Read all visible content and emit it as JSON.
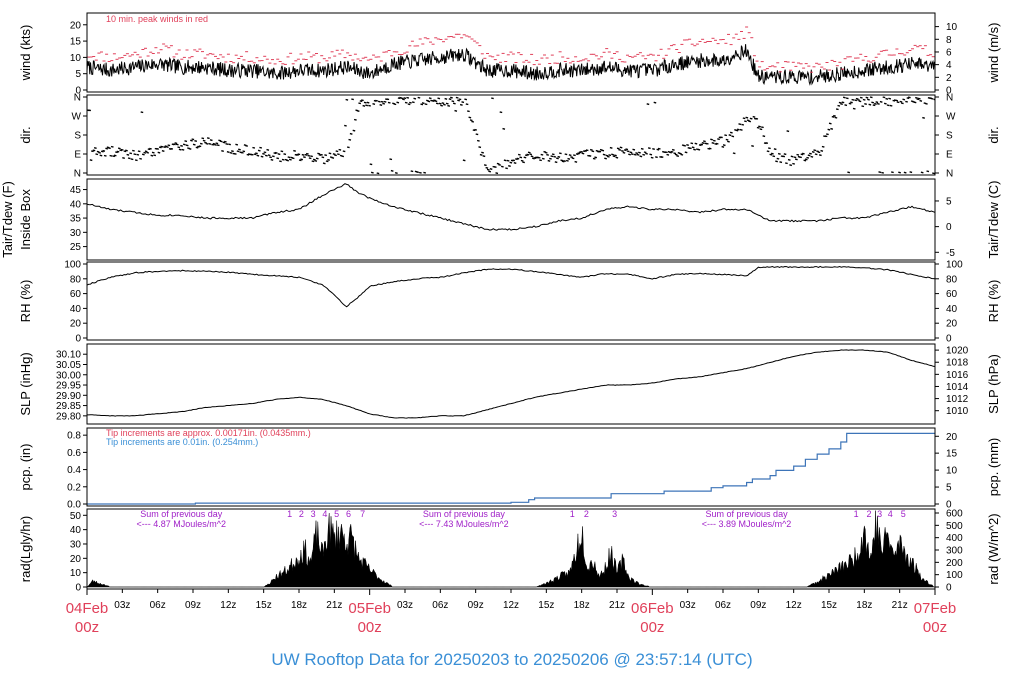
{
  "footer": {
    "title": "UW Rooftop Data for 20250203  to  20250206 @ 23:57:14  (UTC)"
  },
  "time_axis": {
    "range_hours": [
      0,
      72
    ],
    "major": [
      {
        "hour": 0,
        "day": "04Feb",
        "time": "00z"
      },
      {
        "hour": 24,
        "day": "05Feb",
        "time": "00z"
      },
      {
        "hour": 48,
        "day": "06Feb",
        "time": "00z"
      },
      {
        "hour": 72,
        "day": "07Feb",
        "time": "00z"
      }
    ],
    "minor": [
      {
        "hour": 3,
        "label": "03z"
      },
      {
        "hour": 6,
        "label": "06z"
      },
      {
        "hour": 9,
        "label": "09z"
      },
      {
        "hour": 12,
        "label": "12z"
      },
      {
        "hour": 15,
        "label": "15z"
      },
      {
        "hour": 18,
        "label": "18z"
      },
      {
        "hour": 21,
        "label": "21z"
      },
      {
        "hour": 27,
        "label": "03z"
      },
      {
        "hour": 30,
        "label": "06z"
      },
      {
        "hour": 33,
        "label": "09z"
      },
      {
        "hour": 36,
        "label": "12z"
      },
      {
        "hour": 39,
        "label": "15z"
      },
      {
        "hour": 42,
        "label": "18z"
      },
      {
        "hour": 45,
        "label": "21z"
      },
      {
        "hour": 51,
        "label": "03z"
      },
      {
        "hour": 54,
        "label": "06z"
      },
      {
        "hour": 57,
        "label": "09z"
      },
      {
        "hour": 60,
        "label": "12z"
      },
      {
        "hour": 63,
        "label": "15z"
      },
      {
        "hour": 66,
        "label": "18z"
      },
      {
        "hour": 69,
        "label": "21z"
      }
    ]
  },
  "chart_data": [
    {
      "type": "line",
      "id": "wind",
      "ylabel_left": "wind (kts)",
      "ylabel_right": "wind (m/s)",
      "ylim": [
        0,
        23
      ],
      "yticks_left": [
        0,
        5,
        10,
        15,
        20
      ],
      "yticks_right": [
        {
          "value": 0,
          "label": "0"
        },
        {
          "value": 3.89,
          "label": "2"
        },
        {
          "value": 7.78,
          "label": "4"
        },
        {
          "value": 11.66,
          "label": "6"
        },
        {
          "value": 15.55,
          "label": "8"
        },
        {
          "value": 19.44,
          "label": "10"
        }
      ],
      "annotation": {
        "text": "10 min. peak winds in red",
        "color": "#e0405a"
      },
      "series": [
        {
          "name": "wind",
          "x": [
            0,
            2,
            4,
            6,
            8,
            10,
            12,
            14,
            16,
            18,
            20,
            22,
            24,
            26,
            28,
            30,
            32,
            34,
            36,
            38,
            40,
            42,
            44,
            46,
            48,
            50,
            52,
            54,
            55,
            56,
            57,
            58,
            60,
            62,
            64,
            66,
            68,
            70,
            72
          ],
          "y": [
            7,
            6,
            7,
            8,
            7,
            7,
            6,
            6,
            5,
            6,
            6,
            7,
            5,
            8,
            9,
            10,
            11,
            6,
            6,
            5,
            6,
            6,
            7,
            6,
            6,
            8,
            9,
            9,
            11,
            12,
            4,
            4,
            4,
            4,
            5,
            6,
            7,
            8,
            7
          ]
        },
        {
          "name": "10 min. peak winds",
          "x": [
            0,
            2,
            4,
            6,
            8,
            10,
            12,
            14,
            16,
            18,
            20,
            22,
            24,
            26,
            28,
            30,
            32,
            34,
            36,
            38,
            40,
            42,
            44,
            46,
            48,
            50,
            52,
            54,
            55,
            56,
            57,
            58,
            60,
            62,
            64,
            66,
            68,
            70,
            72
          ],
          "y": [
            11,
            10,
            11,
            13,
            11,
            11,
            10,
            10,
            9,
            10,
            10,
            11,
            9,
            12,
            14,
            16,
            17,
            10,
            10,
            9,
            10,
            10,
            11,
            10,
            10,
            13,
            15,
            15,
            16,
            18,
            7,
            7,
            7,
            7,
            8,
            10,
            11,
            13,
            11
          ]
        }
      ]
    },
    {
      "type": "scatter",
      "id": "direction",
      "ylabel_left": "dir.",
      "ylabel_right": "dir.",
      "ylim": [
        0,
        360
      ],
      "yticks": [
        {
          "value": 0,
          "label": "N"
        },
        {
          "value": 90,
          "label": "E"
        },
        {
          "value": 180,
          "label": "S"
        },
        {
          "value": 270,
          "label": "W"
        },
        {
          "value": 360,
          "label": "N"
        }
      ],
      "series": [
        {
          "name": "direction",
          "x": [
            0,
            2,
            4,
            6,
            8,
            10,
            12,
            14,
            16,
            18,
            20,
            22,
            22.5,
            23,
            24,
            26,
            28,
            30,
            32,
            34,
            36,
            38,
            40,
            42,
            44,
            46,
            48,
            50,
            52,
            54,
            55,
            56,
            57,
            58,
            60,
            62,
            64,
            66,
            68,
            70,
            72
          ],
          "y": [
            95,
            100,
            85,
            115,
            135,
            150,
            120,
            105,
            80,
            85,
            70,
            95,
            200,
            340,
            345,
            350,
            350,
            345,
            340,
            5,
            60,
            80,
            75,
            85,
            95,
            100,
            95,
            110,
            125,
            150,
            200,
            260,
            230,
            80,
            60,
            90,
            345,
            340,
            345,
            345,
            350
          ]
        }
      ]
    },
    {
      "type": "line",
      "id": "temperature",
      "ylabel_left": [
        "Tair/Tdew (F)",
        "Inside Box"
      ],
      "ylabel_right": "Tair/Tdew (C)",
      "ylim": [
        21,
        48
      ],
      "yticks_left": [
        25,
        30,
        35,
        40,
        45
      ],
      "yticks_right": [
        {
          "value": 23,
          "label": "-5"
        },
        {
          "value": 32,
          "label": "0"
        },
        {
          "value": 41,
          "label": "5"
        }
      ],
      "series": [
        {
          "name": "Tair",
          "x": [
            0,
            2,
            4,
            6,
            8,
            10,
            12,
            14,
            16,
            18,
            20,
            21,
            22,
            23,
            24,
            26,
            28,
            30,
            32,
            34,
            36,
            38,
            40,
            42,
            44,
            46,
            48,
            50,
            52,
            54,
            56,
            58,
            60,
            62,
            64,
            66,
            68,
            70,
            72
          ],
          "y": [
            40,
            38,
            37,
            36,
            36,
            35,
            35,
            35,
            37,
            38,
            43,
            45,
            47,
            44,
            42,
            39,
            37,
            35,
            33,
            31,
            31,
            32,
            34,
            35,
            38,
            39,
            38,
            38,
            37,
            38,
            38,
            34,
            34,
            34,
            35,
            35,
            37,
            39,
            37
          ]
        }
      ]
    },
    {
      "type": "line",
      "id": "humidity",
      "ylabel_left": "RH (%)",
      "ylabel_right": "RH (%)",
      "ylim": [
        0,
        100
      ],
      "yticks": [
        0,
        20,
        40,
        60,
        80,
        100
      ],
      "series": [
        {
          "name": "RH",
          "x": [
            0,
            2,
            4,
            6,
            8,
            10,
            12,
            14,
            16,
            18,
            20,
            21,
            22,
            23,
            24,
            26,
            28,
            30,
            32,
            34,
            36,
            38,
            40,
            42,
            44,
            46,
            48,
            50,
            52,
            54,
            56,
            57,
            58,
            60,
            62,
            64,
            66,
            68,
            70,
            72
          ],
          "y": [
            72,
            82,
            88,
            90,
            91,
            90,
            89,
            86,
            84,
            82,
            72,
            58,
            42,
            55,
            70,
            76,
            80,
            82,
            88,
            93,
            93,
            90,
            86,
            82,
            87,
            86,
            80,
            86,
            87,
            86,
            84,
            95,
            96,
            96,
            96,
            96,
            95,
            92,
            86,
            80
          ]
        }
      ]
    },
    {
      "type": "line",
      "id": "pressure",
      "ylabel_left": "SLP (inHg)",
      "ylabel_right": "SLP (hPa)",
      "ylim": [
        29.77,
        30.14
      ],
      "yticks_left": [
        {
          "value": 29.8,
          "label": "29.80"
        },
        {
          "value": 29.85,
          "label": "29.85"
        },
        {
          "value": 29.9,
          "label": "29.90"
        },
        {
          "value": 29.95,
          "label": "29.95"
        },
        {
          "value": 30.0,
          "label": "30.00"
        },
        {
          "value": 30.05,
          "label": "30.05"
        },
        {
          "value": 30.1,
          "label": "30.10"
        }
      ],
      "yticks_right": [
        {
          "value": 29.825,
          "label": "1010"
        },
        {
          "value": 29.884,
          "label": "1012"
        },
        {
          "value": 29.943,
          "label": "1014"
        },
        {
          "value": 30.002,
          "label": "1016"
        },
        {
          "value": 30.061,
          "label": "1018"
        },
        {
          "value": 30.12,
          "label": "1020"
        }
      ],
      "series": [
        {
          "name": "SLP",
          "x": [
            0,
            2,
            4,
            6,
            8,
            10,
            12,
            14,
            16,
            18,
            20,
            22,
            24,
            26,
            28,
            30,
            32,
            34,
            36,
            38,
            40,
            42,
            44,
            46,
            48,
            50,
            52,
            54,
            56,
            58,
            60,
            62,
            64,
            66,
            68,
            70,
            72
          ],
          "y": [
            29.805,
            29.8,
            29.8,
            29.81,
            29.82,
            29.84,
            29.85,
            29.86,
            29.88,
            29.89,
            29.88,
            29.85,
            29.81,
            29.79,
            29.79,
            29.8,
            29.8,
            29.83,
            29.86,
            29.89,
            29.91,
            29.93,
            29.95,
            29.95,
            29.96,
            29.98,
            29.99,
            30.01,
            30.03,
            30.06,
            30.09,
            30.11,
            30.12,
            30.12,
            30.11,
            30.07,
            30.04
          ]
        }
      ]
    },
    {
      "type": "line",
      "id": "precipitation",
      "ylabel_left": "pcp. (in)",
      "ylabel_right": "pcp. (mm)",
      "ylim": [
        0,
        0.86
      ],
      "yticks_left": [
        {
          "value": 0.0,
          "label": "0.0"
        },
        {
          "value": 0.2,
          "label": "0.2"
        },
        {
          "value": 0.4,
          "label": "0.4"
        },
        {
          "value": 0.6,
          "label": "0.6"
        },
        {
          "value": 0.8,
          "label": "0.8"
        }
      ],
      "yticks_right": [
        {
          "value": 0,
          "label": "0"
        },
        {
          "value": 0.197,
          "label": "5"
        },
        {
          "value": 0.394,
          "label": "10"
        },
        {
          "value": 0.591,
          "label": "15"
        },
        {
          "value": 0.787,
          "label": "20"
        }
      ],
      "annotations": [
        {
          "text": "Tip increments are approx. 0.00171in. (0.0435mm.)",
          "color": "#e0405a"
        },
        {
          "text": "Tip increments are 0.01in. (0.254mm.)",
          "color": "#3a8fd6"
        }
      ],
      "series": [
        {
          "name": "precipitation",
          "x": [
            0,
            9,
            9.2,
            34,
            36,
            37.5,
            38,
            43,
            44.5,
            48,
            49,
            52,
            53,
            54,
            56,
            56.5,
            58,
            58.5,
            60,
            61,
            62,
            63,
            64,
            64.5,
            72
          ],
          "y": [
            0,
            0,
            0.01,
            0.01,
            0.02,
            0.05,
            0.07,
            0.07,
            0.12,
            0.12,
            0.15,
            0.15,
            0.19,
            0.21,
            0.25,
            0.29,
            0.33,
            0.39,
            0.44,
            0.52,
            0.58,
            0.64,
            0.72,
            0.82,
            0.82
          ]
        }
      ]
    },
    {
      "type": "area",
      "id": "radiation",
      "ylabel_left": "rad(Lgly/hr)",
      "ylabel_right": "rad (W/m^2)",
      "ylim": [
        0,
        53
      ],
      "yticks_left": [
        0,
        10,
        20,
        30,
        40,
        50
      ],
      "yticks_right": [
        {
          "value": 0,
          "label": "0"
        },
        {
          "value": 8.6,
          "label": "100"
        },
        {
          "value": 17.2,
          "label": "200"
        },
        {
          "value": 25.8,
          "label": "300"
        },
        {
          "value": 34.4,
          "label": "400"
        },
        {
          "value": 43.0,
          "label": "500"
        },
        {
          "value": 51.6,
          "label": "600"
        }
      ],
      "hour_markers": [
        {
          "hour": 17.2,
          "label": "1"
        },
        {
          "hour": 18.2,
          "label": "2"
        },
        {
          "hour": 19.2,
          "label": "3"
        },
        {
          "hour": 20.2,
          "label": "4"
        },
        {
          "hour": 21.2,
          "label": "5"
        },
        {
          "hour": 22.2,
          "label": "6"
        },
        {
          "hour": 23.4,
          "label": "7"
        },
        {
          "hour": 41.2,
          "label": "1"
        },
        {
          "hour": 42.4,
          "label": "2"
        },
        {
          "hour": 44.8,
          "label": "3"
        },
        {
          "hour": 65.3,
          "label": "1"
        },
        {
          "hour": 66.4,
          "label": "2"
        },
        {
          "hour": 67.3,
          "label": "3"
        },
        {
          "hour": 68.2,
          "label": "4"
        },
        {
          "hour": 69.3,
          "label": "5"
        }
      ],
      "day_sums": [
        {
          "hour": 8,
          "line1": "Sum of previous day",
          "line2": "<--- 4.87 MJoules/m^2"
        },
        {
          "hour": 32,
          "line1": "Sum of previous day",
          "line2": "<--- 7.43 MJoules/m^2"
        },
        {
          "hour": 56,
          "line1": "Sum of previous day",
          "line2": "<--- 3.89 MJoules/m^2"
        }
      ],
      "series": [
        {
          "name": "radiation",
          "x": [
            0,
            0.5,
            1,
            1.5,
            2,
            15,
            15.5,
            16,
            17,
            18,
            18.5,
            19,
            19.5,
            20,
            20.5,
            21,
            21.5,
            22,
            22.5,
            23,
            24,
            25,
            26,
            38,
            39,
            40,
            41,
            41.5,
            42,
            42.5,
            43,
            43.5,
            44,
            44.5,
            45,
            45.5,
            46,
            47,
            48,
            61,
            62,
            63,
            64,
            65,
            65.5,
            66,
            66.5,
            67,
            67.5,
            68,
            68.5,
            69,
            69.5,
            70,
            70.5,
            71,
            72
          ],
          "y": [
            0,
            5,
            3,
            2,
            0,
            0,
            3,
            8,
            14,
            25,
            30,
            20,
            44,
            26,
            48,
            40,
            46,
            38,
            40,
            24,
            14,
            6,
            0,
            0,
            3,
            8,
            12,
            28,
            48,
            16,
            22,
            8,
            16,
            28,
            12,
            22,
            8,
            2,
            0,
            0,
            4,
            10,
            16,
            22,
            30,
            48,
            22,
            52,
            30,
            44,
            24,
            36,
            28,
            20,
            14,
            6,
            0
          ]
        }
      ]
    }
  ]
}
